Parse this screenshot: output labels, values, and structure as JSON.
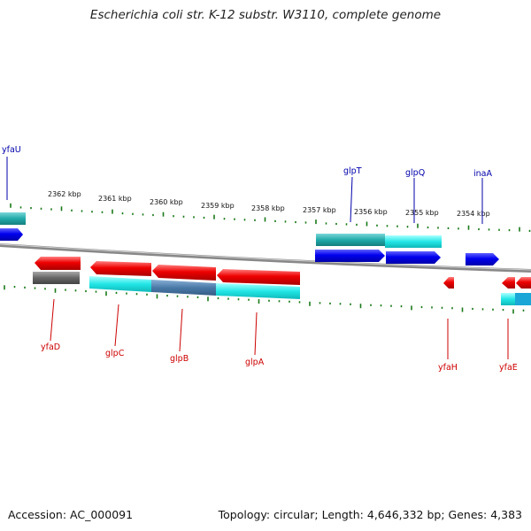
{
  "title": "Escherichia coli str. K-12 substr. W3110, complete genome",
  "footer": {
    "accession": "Accession: AC_000091",
    "summary": "Topology: circular; Length: 4,646,332 bp; Genes: 4,383"
  },
  "ruler": {
    "unit": "kbp",
    "ticks": [
      {
        "id": "2362",
        "label": "2362 kbp"
      },
      {
        "id": "2361",
        "label": "2361 kbp"
      },
      {
        "id": "2360",
        "label": "2360 kbp"
      },
      {
        "id": "2359",
        "label": "2359 kbp"
      },
      {
        "id": "2358",
        "label": "2358 kbp"
      },
      {
        "id": "2357",
        "label": "2357 kbp"
      },
      {
        "id": "2356",
        "label": "2356 kbp"
      },
      {
        "id": "2355",
        "label": "2355 kbp"
      },
      {
        "id": "2354",
        "label": "2354 kbp"
      }
    ]
  },
  "genes_forward": [
    {
      "name": "yfaU"
    },
    {
      "name": "glpT"
    },
    {
      "name": "glpQ"
    },
    {
      "name": "inaA"
    }
  ],
  "genes_reverse": [
    {
      "name": "yfaD"
    },
    {
      "name": "glpC"
    },
    {
      "name": "glpB"
    },
    {
      "name": "glpA"
    },
    {
      "name": "yfaH"
    },
    {
      "name": "yfaE"
    }
  ],
  "colors": {
    "forward_cds": "#0000ee",
    "reverse_cds": "#ee0000",
    "forward_label": "#0000aa",
    "reverse_label": "#cc0000",
    "ruler_tick": "#1a7a1a",
    "backbone": "#888888",
    "feature_cyan": "#22dddd",
    "feature_teal": "#22aaaa",
    "feature_gray": "#666666",
    "feature_steel": "#4a7aa8"
  }
}
